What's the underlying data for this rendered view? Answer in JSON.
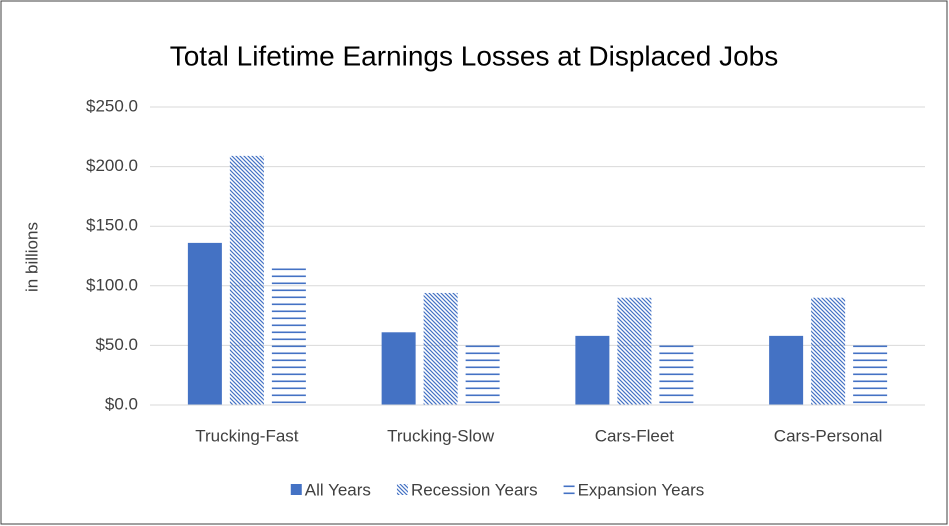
{
  "chart_data": {
    "type": "bar",
    "title": "Total Lifetime Earnings Losses at Displaced Jobs",
    "y_label": "in billions",
    "categories": [
      "Trucking-Fast",
      "Trucking-Slow",
      "Cars-Fleet",
      "Cars-Personal"
    ],
    "series": [
      {
        "name": "All Years",
        "color": "#4472c4",
        "pattern": "solid",
        "values": [
          136,
          61,
          58,
          58
        ]
      },
      {
        "name": "Recession Years",
        "color": "#4472c4",
        "pattern": "diagonal",
        "values": [
          209,
          94,
          90,
          90
        ]
      },
      {
        "name": "Expansion Years",
        "color": "#4472c4",
        "pattern": "horizontal",
        "values": [
          117,
          51,
          51,
          51
        ]
      }
    ],
    "ylim": [
      0,
      250
    ],
    "yticks": [
      {
        "value": 0,
        "label": "$0.0"
      },
      {
        "value": 50,
        "label": "$50.0"
      },
      {
        "value": 100,
        "label": "$100.0"
      },
      {
        "value": 150,
        "label": "$150.0"
      },
      {
        "value": 200,
        "label": "$200.0"
      },
      {
        "value": 250,
        "label": "$250.0"
      }
    ],
    "grid": true,
    "legend": "bottom"
  }
}
